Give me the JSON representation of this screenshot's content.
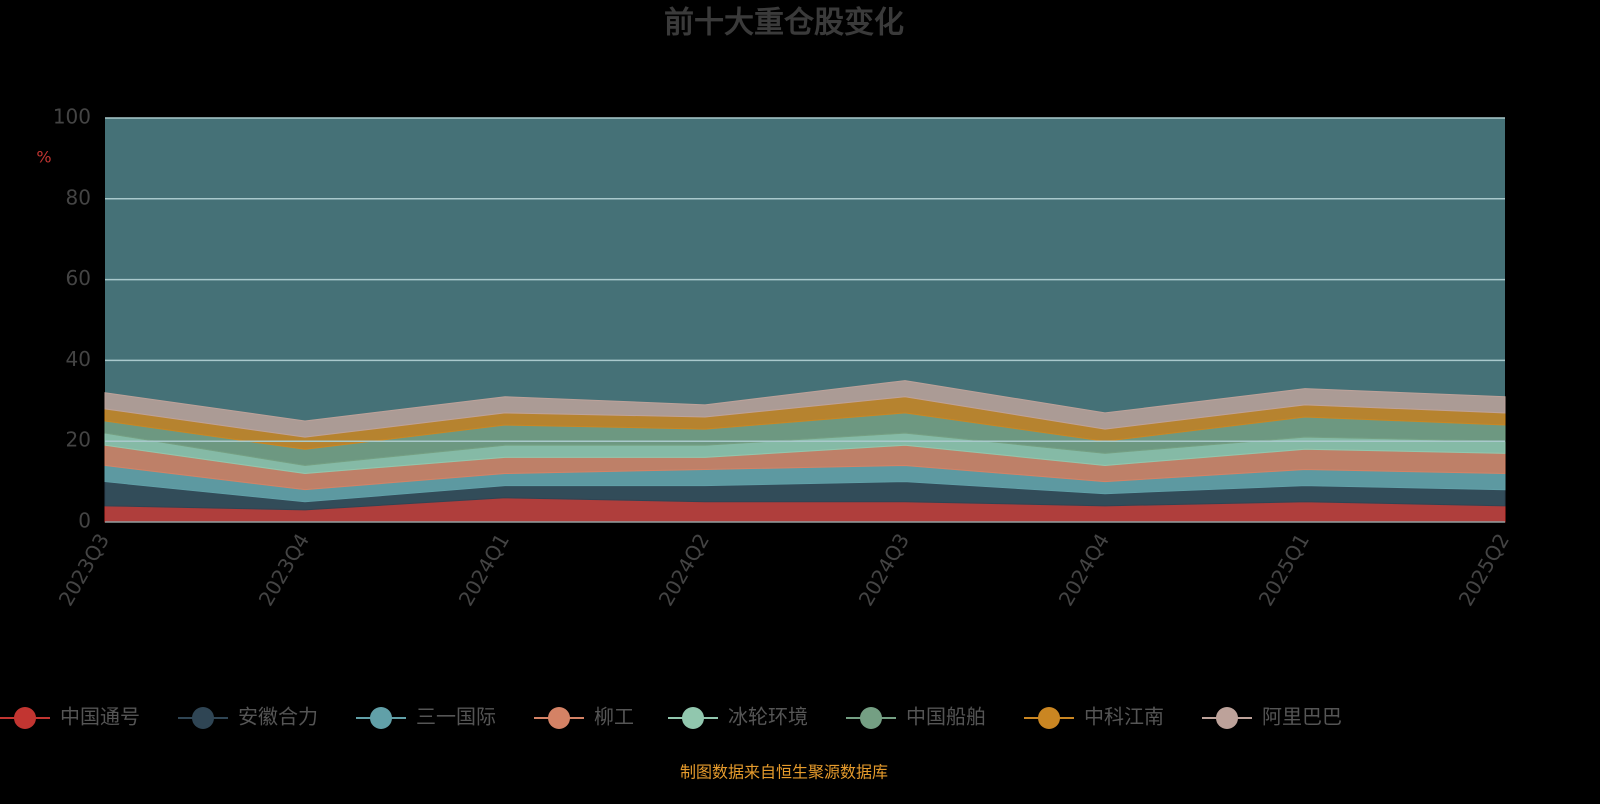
{
  "chart_data": {
    "type": "stacked_area",
    "title": "前十大重仓股变化",
    "y_unit": "%",
    "source_note": "制图数据来自恒生聚源数据库",
    "categories": [
      "2023Q3",
      "2023Q4",
      "2024Q1",
      "2024Q2",
      "2024Q3",
      "2024Q4",
      "2025Q1",
      "2025Q2"
    ],
    "ylim": [
      0,
      100
    ],
    "yticks": [
      0,
      20,
      40,
      60,
      80,
      100
    ],
    "grid": true,
    "series": [
      {
        "name": "中国通号",
        "color": "#c23531",
        "values": [
          4,
          3,
          6,
          5,
          5,
          4,
          5,
          4
        ]
      },
      {
        "name": "安徽合力",
        "color": "#2f4554",
        "values": [
          6,
          2,
          3,
          4,
          5,
          3,
          4,
          4
        ]
      },
      {
        "name": "三一国际",
        "color": "#61a0a8",
        "values": [
          4,
          3,
          3,
          4,
          4,
          3,
          4,
          4
        ]
      },
      {
        "name": "柳工",
        "color": "#d48265",
        "values": [
          5,
          4,
          4,
          3,
          5,
          4,
          5,
          5
        ]
      },
      {
        "name": "冰轮环境",
        "color": "#91c7ae",
        "values": [
          3,
          2,
          3,
          3,
          3,
          3,
          3,
          3
        ]
      },
      {
        "name": "中国船舶",
        "color": "#749f83",
        "values": [
          3,
          4,
          5,
          4,
          5,
          3,
          5,
          4
        ]
      },
      {
        "name": "中科江南",
        "color": "#ca8622",
        "values": [
          3,
          3,
          3,
          3,
          4,
          3,
          3,
          3
        ]
      },
      {
        "name": "阿里巴巴",
        "color": "#bda29a",
        "values": [
          4,
          4,
          4,
          3,
          4,
          4,
          4,
          4
        ]
      }
    ]
  }
}
